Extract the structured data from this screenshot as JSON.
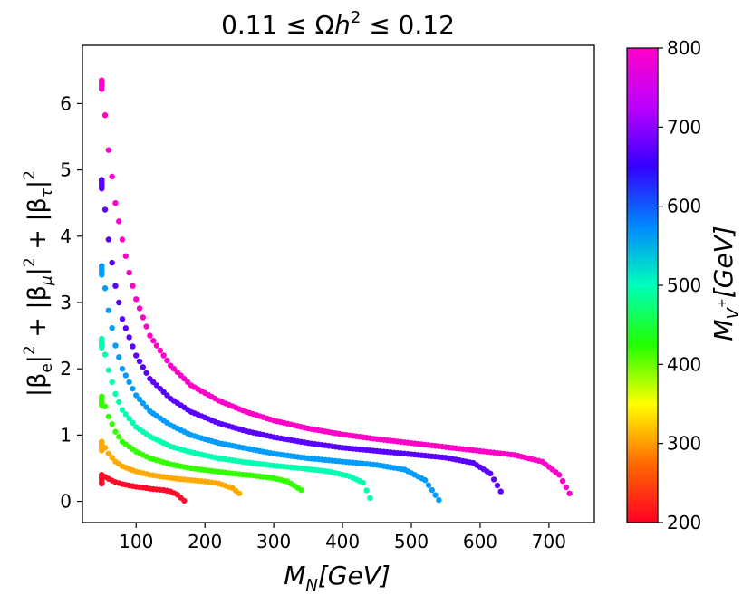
{
  "chart_data": {
    "type": "scatter",
    "title": {
      "pre": "0.11 ≤ Ω",
      "italic": "h",
      "sup": "2",
      "post": " ≤ 0.12"
    },
    "xlabel": {
      "base": "M",
      "sub": "N",
      "tail": "[GeV]"
    },
    "ylabel": {
      "t1": "|β",
      "s1": "e",
      "t2": "|",
      "p1": "2",
      "t3": " + |β",
      "s2": "μ",
      "t4": "|",
      "p2": "2",
      "t5": " + |β",
      "s3": "τ",
      "t6": "|",
      "p3": "2"
    },
    "colorbar_label": {
      "base": "M",
      "sub": "V",
      "sup": "+",
      "tail": "[GeV]"
    },
    "xlim": [
      22,
      766
    ],
    "ylim": [
      -0.32,
      6.88
    ],
    "xticks": [
      100,
      200,
      300,
      400,
      500,
      600,
      700
    ],
    "yticks": [
      0,
      1,
      2,
      3,
      4,
      5,
      6
    ],
    "colorbar_range": [
      200,
      800
    ],
    "colorbar_ticks": [
      200,
      300,
      400,
      500,
      600,
      700,
      800
    ],
    "colorbar_colors": [
      "#ff0022",
      "#ff6a00",
      "#ffff00",
      "#22ff00",
      "#00ffbb",
      "#0088ff",
      "#3300ff",
      "#bb00ff",
      "#ff00c8"
    ],
    "series": [
      {
        "name": "200",
        "value": 200,
        "color": "#ff0a28",
        "x": [
          50,
          60,
          70,
          80,
          90,
          100,
          110,
          120,
          130,
          140,
          150,
          160,
          170
        ],
        "y": [
          0.4,
          0.34,
          0.29,
          0.26,
          0.24,
          0.22,
          0.21,
          0.19,
          0.18,
          0.17,
          0.15,
          0.1,
          0.01
        ]
      },
      {
        "name": "300",
        "value": 300,
        "color": "#ffaa00",
        "x": [
          50,
          60,
          70,
          80,
          100,
          120,
          140,
          160,
          180,
          200,
          220,
          240,
          250
        ],
        "y": [
          0.9,
          0.72,
          0.6,
          0.53,
          0.45,
          0.4,
          0.37,
          0.34,
          0.32,
          0.3,
          0.27,
          0.2,
          0.12
        ]
      },
      {
        "name": "400",
        "value": 400,
        "color": "#33ff00",
        "x": [
          50,
          60,
          70,
          80,
          100,
          120,
          150,
          180,
          210,
          240,
          270,
          300,
          320,
          340
        ],
        "y": [
          1.58,
          1.28,
          1.05,
          0.9,
          0.75,
          0.65,
          0.56,
          0.5,
          0.46,
          0.42,
          0.39,
          0.35,
          0.3,
          0.17
        ]
      },
      {
        "name": "500",
        "value": 500,
        "color": "#00ffb0",
        "x": [
          50,
          60,
          70,
          80,
          100,
          120,
          150,
          180,
          220,
          260,
          300,
          340,
          380,
          410,
          430,
          440
        ],
        "y": [
          2.45,
          1.98,
          1.62,
          1.38,
          1.12,
          0.98,
          0.83,
          0.74,
          0.65,
          0.59,
          0.54,
          0.5,
          0.45,
          0.38,
          0.28,
          0.05
        ]
      },
      {
        "name": "600",
        "value": 600,
        "color": "#009dff",
        "x": [
          50,
          60,
          70,
          80,
          100,
          120,
          150,
          180,
          220,
          260,
          300,
          350,
          400,
          450,
          490,
          520,
          540
        ],
        "y": [
          3.55,
          2.88,
          2.35,
          2.0,
          1.6,
          1.36,
          1.15,
          1.0,
          0.88,
          0.8,
          0.72,
          0.65,
          0.6,
          0.55,
          0.48,
          0.32,
          0.02
        ]
      },
      {
        "name": "700",
        "value": 700,
        "color": "#5a00ff",
        "x": [
          50,
          60,
          70,
          80,
          100,
          120,
          150,
          180,
          220,
          260,
          300,
          350,
          400,
          450,
          500,
          550,
          590,
          615,
          630
        ],
        "y": [
          4.85,
          3.95,
          3.25,
          2.75,
          2.2,
          1.85,
          1.55,
          1.35,
          1.18,
          1.06,
          0.97,
          0.88,
          0.81,
          0.76,
          0.71,
          0.66,
          0.58,
          0.42,
          0.15
        ]
      },
      {
        "name": "800",
        "value": 800,
        "color": "#ff00c8",
        "x": [
          50,
          60,
          70,
          80,
          90,
          100,
          120,
          150,
          180,
          220,
          260,
          300,
          350,
          400,
          450,
          500,
          550,
          600,
          650,
          690,
          715,
          730
        ],
        "y": [
          6.35,
          5.3,
          4.5,
          3.95,
          3.45,
          3.05,
          2.5,
          2.05,
          1.75,
          1.52,
          1.35,
          1.22,
          1.1,
          1.01,
          0.94,
          0.88,
          0.82,
          0.76,
          0.7,
          0.6,
          0.4,
          0.12
        ]
      }
    ]
  }
}
